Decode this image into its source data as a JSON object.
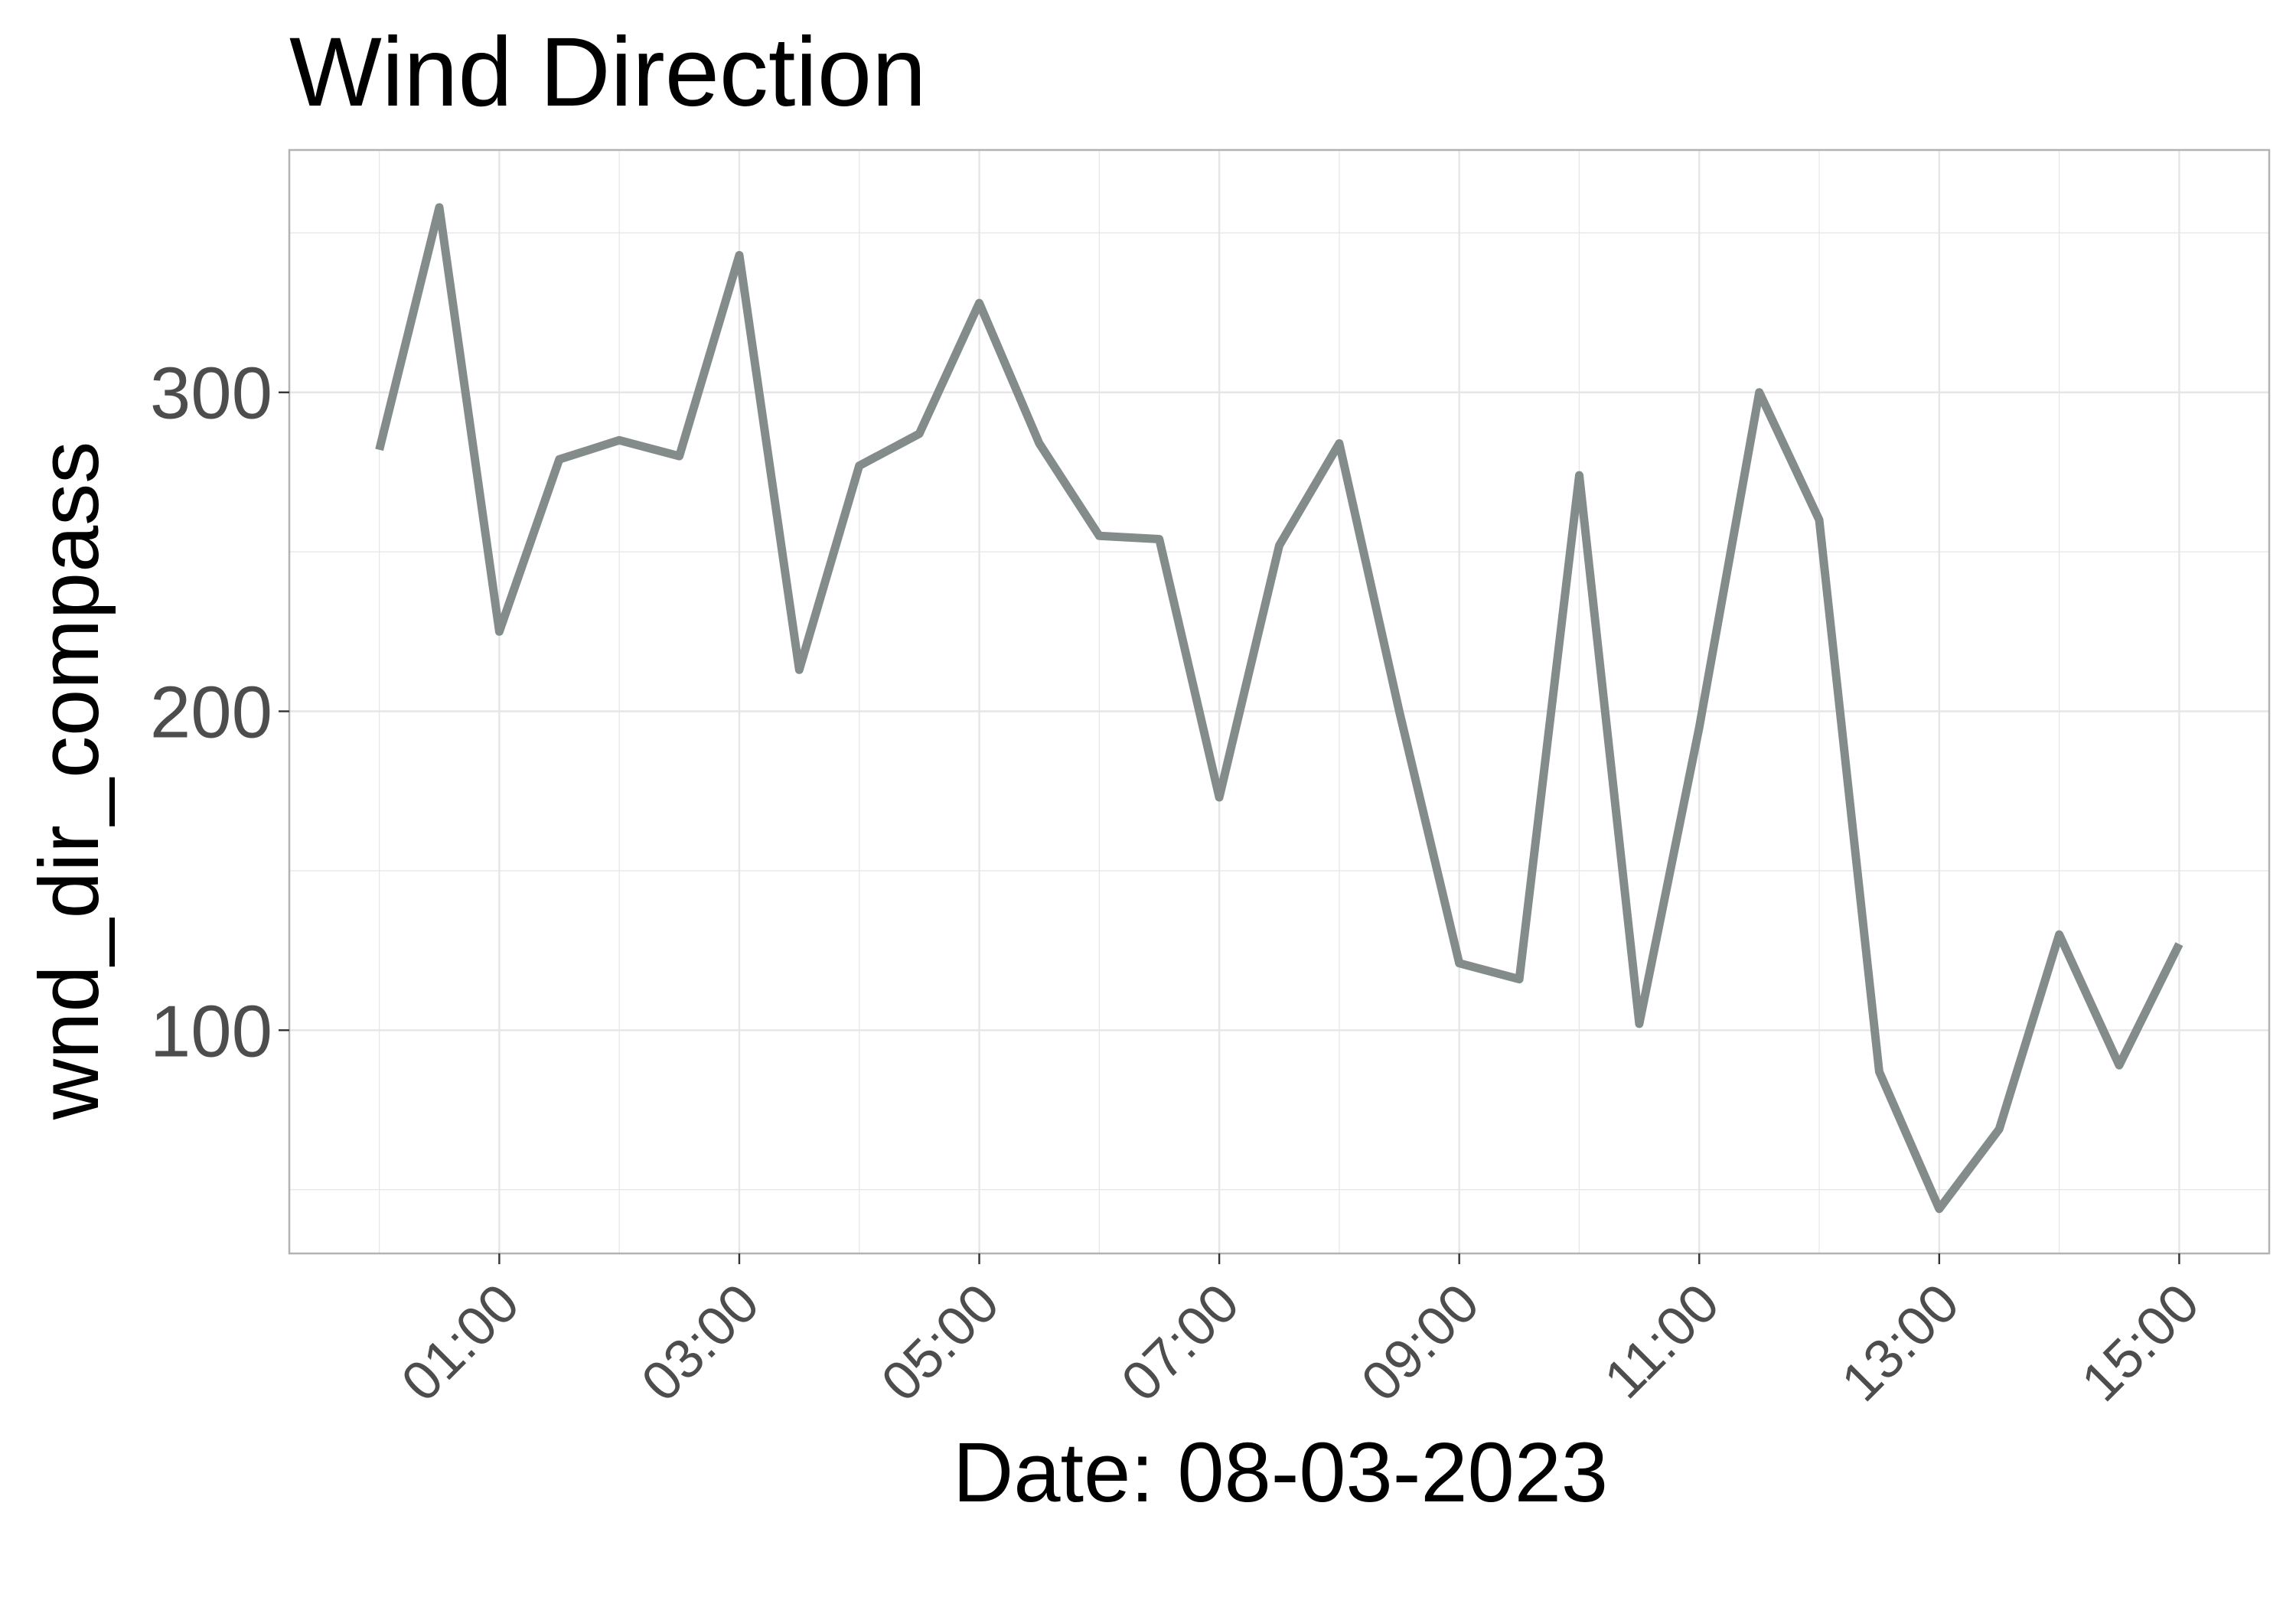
{
  "chart_data": {
    "type": "line",
    "title": "Wind Direction",
    "xlabel": "Date: 08-03-2023",
    "ylabel": "wnd_dir_compass",
    "x": [
      "00:00",
      "00:30",
      "01:00",
      "01:30",
      "02:00",
      "02:30",
      "03:00",
      "03:30",
      "04:00",
      "04:30",
      "05:00",
      "05:30",
      "06:00",
      "06:30",
      "07:00",
      "07:30",
      "08:00",
      "08:30",
      "09:00",
      "09:30",
      "10:00",
      "10:30",
      "11:00",
      "11:30",
      "12:00",
      "12:30",
      "13:00",
      "13:30",
      "14:00",
      "14:30",
      "15:00"
    ],
    "values": [
      282,
      358,
      225,
      279,
      285,
      280,
      343,
      213,
      277,
      287,
      328,
      284,
      255,
      254,
      173,
      252,
      284,
      200,
      121,
      116,
      274,
      102,
      195,
      300,
      260,
      87,
      44,
      69,
      130,
      89,
      127
    ],
    "xlim": [
      "23:15",
      "15:45"
    ],
    "ylim": [
      30,
      376
    ],
    "x_ticks": [
      "01:00",
      "03:00",
      "05:00",
      "07:00",
      "09:00",
      "11:00",
      "13:00",
      "15:00"
    ],
    "y_ticks": [
      100,
      200,
      300
    ],
    "grid": true,
    "line_color": "#838B8B",
    "panel_border_color": "#b3b3b3",
    "grid_color": "#e6e6e6"
  }
}
